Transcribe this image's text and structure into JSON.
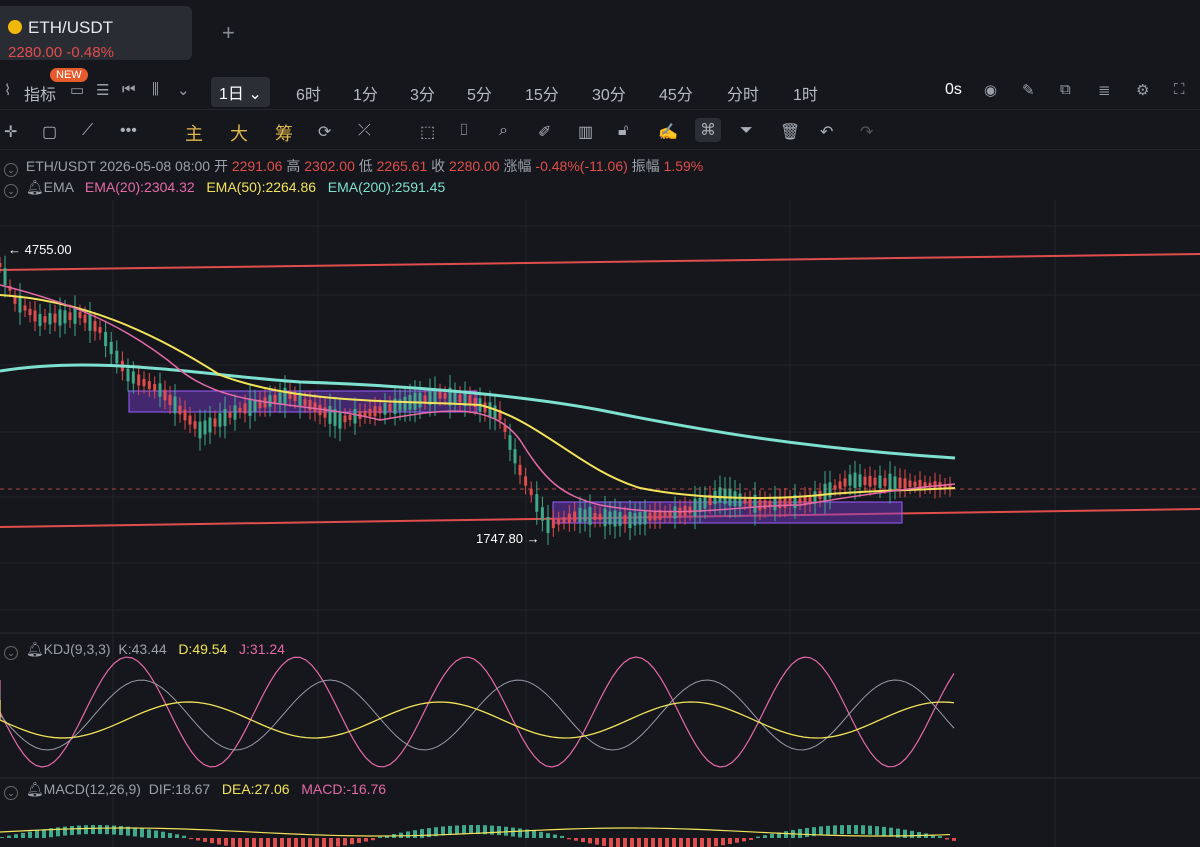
{
  "tab": {
    "symbol": "ETH/USDT",
    "price_line": "2280.00 -0.48%",
    "add": "+"
  },
  "indicator_label": "指标",
  "new_badge": "NEW",
  "timeframes": [
    "1日",
    "6时",
    "1分",
    "3分",
    "5分",
    "15分",
    "30分",
    "45分",
    "分时",
    "1时"
  ],
  "selected_timeframe": "1日",
  "countdown": "0s",
  "tools_text": [
    "主",
    "大",
    "筹"
  ],
  "ohlc": {
    "symbol": "ETH/USDT",
    "datetime": "2026-05-08 08:00",
    "open_label": "开",
    "open": "2291.06",
    "high_label": "高",
    "high": "2302.00",
    "low_label": "低",
    "low": "2265.61",
    "close_label": "收",
    "close": "2280.00",
    "change_label": "涨幅",
    "change": "-0.48%(-11.06)",
    "amp_label": "振幅",
    "amp": "1.59%"
  },
  "ema": {
    "name": "EMA",
    "ema20": "EMA(20):2304.32",
    "ema50": "EMA(50):2264.86",
    "ema200": "EMA(200):2591.45"
  },
  "annotations": {
    "high": "← 4755.00",
    "low": "1747.80 →"
  },
  "kdj": {
    "name": "KDJ(9,3,3)",
    "k": "K:43.44",
    "d": "D:49.54",
    "j": "J:31.24"
  },
  "macd": {
    "name": "MACD(12,26,9)",
    "dif": "DIF:18.67",
    "dea": "DEA:27.06",
    "macd": "MACD:-16.76"
  },
  "colors": {
    "up": "#3fa98a",
    "down": "#e04d4d",
    "ema20": "#e46aa8",
    "ema50": "#f2e35a",
    "ema200": "#7ee0d0",
    "box": "#7b3fd6",
    "trend": "#e04d4d"
  }
}
